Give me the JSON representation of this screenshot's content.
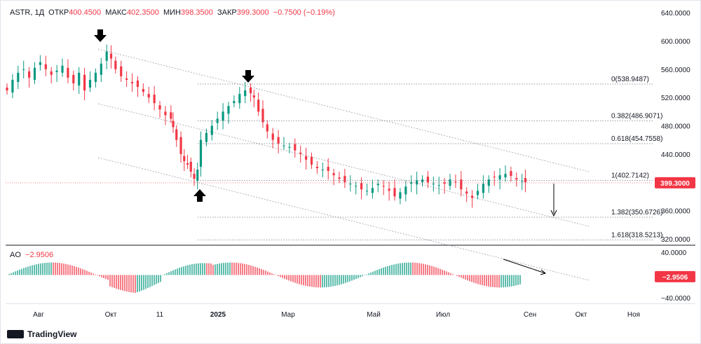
{
  "header": {
    "symbol": "ASTR, 1Д",
    "open_label": "ОТКР",
    "open": "400.4500",
    "high_label": "МАКС",
    "high": "402.3500",
    "low_label": "МИН",
    "low": "398.3500",
    "close_label": "ЗАКР",
    "close": "399.3000",
    "change": "−0.7500 (−0.19%)"
  },
  "ao": {
    "label": "AO",
    "value": "−2.9506"
  },
  "footer": {
    "brand": "TradingView"
  },
  "colors": {
    "up": "#089981",
    "down": "#f23645",
    "grid": "#787b86",
    "text": "#131722"
  },
  "chart_data": [
    {
      "type": "candlestick",
      "title": "ASTR, 1Д",
      "y_axis_labels": [
        "640.0000",
        "600.0000",
        "560.0000",
        "520.0000",
        "480.0000",
        "440.0000",
        "400.0000",
        "360.0000",
        "320.0000"
      ],
      "ylim": [
        311,
        650
      ],
      "x_axis_labels": [
        "Авг",
        "Окт",
        "11",
        "2025",
        "Мар",
        "Май",
        "Июл",
        "Сен",
        "Окт",
        "Ноя"
      ],
      "last_price": "399.3000",
      "price_path": [
        [
          0,
          530
        ],
        [
          5,
          545
        ],
        [
          10,
          555
        ],
        [
          15,
          560
        ],
        [
          20,
          548
        ],
        [
          25,
          562
        ],
        [
          30,
          570
        ],
        [
          35,
          560
        ],
        [
          40,
          552
        ],
        [
          45,
          558
        ],
        [
          50,
          565
        ],
        [
          55,
          548
        ],
        [
          60,
          540
        ],
        [
          65,
          555
        ],
        [
          70,
          530
        ],
        [
          75,
          545
        ],
        [
          80,
          555
        ],
        [
          85,
          568
        ],
        [
          90,
          585
        ],
        [
          94,
          575
        ],
        [
          98,
          560
        ],
        [
          103,
          550
        ],
        [
          108,
          545
        ],
        [
          113,
          540
        ],
        [
          118,
          535
        ],
        [
          123,
          528
        ],
        [
          128,
          520
        ],
        [
          133,
          512
        ],
        [
          138,
          503
        ],
        [
          143,
          495
        ],
        [
          148,
          490
        ],
        [
          150,
          478
        ],
        [
          153,
          460
        ],
        [
          157,
          440
        ],
        [
          160,
          430
        ],
        [
          163,
          425
        ],
        [
          166,
          415
        ],
        [
          169,
          405
        ],
        [
          172,
          418
        ],
        [
          175,
          460
        ],
        [
          180,
          470
        ],
        [
          185,
          480
        ],
        [
          190,
          490
        ],
        [
          195,
          500
        ],
        [
          200,
          508
        ],
        [
          205,
          515
        ],
        [
          210,
          525
        ],
        [
          215,
          530
        ],
        [
          220,
          526
        ],
        [
          223,
          520
        ],
        [
          227,
          500
        ],
        [
          231,
          485
        ],
        [
          235,
          472
        ],
        [
          240,
          460
        ],
        [
          245,
          455
        ],
        [
          250,
          452
        ],
        [
          255,
          450
        ],
        [
          260,
          445
        ],
        [
          265,
          440
        ],
        [
          270,
          432
        ],
        [
          275,
          425
        ],
        [
          280,
          420
        ],
        [
          285,
          418
        ],
        [
          290,
          416
        ],
        [
          295,
          410
        ],
        [
          300,
          405
        ],
        [
          305,
          400
        ],
        [
          310,
          398
        ],
        [
          315,
          395
        ],
        [
          320,
          390
        ],
        [
          325,
          388
        ],
        [
          330,
          392
        ],
        [
          335,
          398
        ],
        [
          340,
          394
        ],
        [
          345,
          388
        ],
        [
          350,
          380
        ],
        [
          355,
          386
        ],
        [
          360,
          394
        ],
        [
          365,
          400
        ],
        [
          370,
          403
        ],
        [
          375,
          404
        ],
        [
          380,
          400
        ],
        [
          385,
          398
        ],
        [
          390,
          396
        ],
        [
          395,
          398
        ],
        [
          400,
          404
        ],
        [
          405,
          400
        ],
        [
          410,
          390
        ],
        [
          415,
          384
        ],
        [
          420,
          378
        ],
        [
          425,
          388
        ],
        [
          430,
          398
        ],
        [
          435,
          404
        ],
        [
          440,
          407
        ],
        [
          445,
          410
        ],
        [
          450,
          412
        ],
        [
          455,
          409
        ],
        [
          460,
          404
        ],
        [
          465,
          402
        ],
        [
          468,
          400
        ]
      ],
      "fib_levels": [
        {
          "label": "0(538.9487)",
          "value": 538.9487
        },
        {
          "label": "0.382(486.9071)",
          "value": 486.9071
        },
        {
          "label": "0.618(454.7558)",
          "value": 454.7558
        },
        {
          "label": "1(402.7142)",
          "value": 402.7142
        },
        {
          "label": "1.382(350.6726)",
          "value": 350.6726
        },
        {
          "label": "1.618(318.5213)",
          "value": 318.5213
        }
      ],
      "grid": false,
      "arrows": [
        "down",
        "down",
        "up",
        "down"
      ]
    },
    {
      "type": "bar",
      "title": "AO",
      "y_axis_labels": [
        "40.0000",
        "−40.0000"
      ],
      "last_value": "−2.9506",
      "ylim": [
        -50,
        50
      ]
    }
  ]
}
